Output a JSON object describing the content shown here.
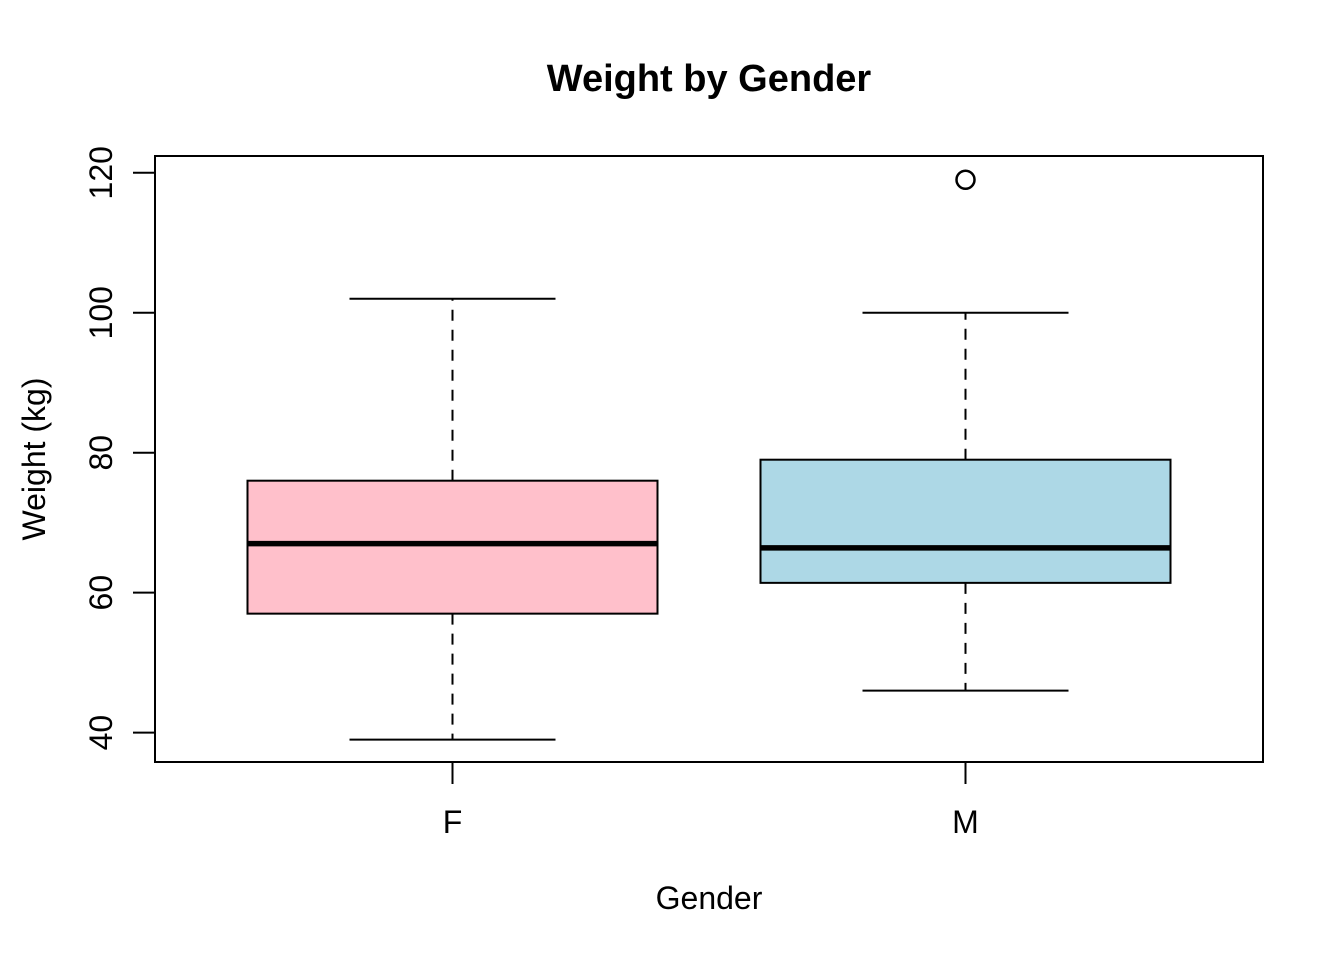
{
  "chart_data": {
    "type": "boxplot",
    "title": "Weight by Gender",
    "xlabel": "Gender",
    "ylabel": "Weight (kg)",
    "categories": [
      "F",
      "M"
    ],
    "y_ticks": [
      40,
      60,
      80,
      100,
      120
    ],
    "ylim": [
      35.8,
      122.4
    ],
    "grid": false,
    "legend": "none",
    "series": [
      {
        "name": "F",
        "fill": "#FFC0CB",
        "whisker_low": 39,
        "q1": 57,
        "median": 67,
        "q3": 76,
        "whisker_high": 102,
        "outliers": []
      },
      {
        "name": "M",
        "fill": "#ADD8E6",
        "whisker_low": 46,
        "q1": 61.4,
        "median": 66.4,
        "q3": 79,
        "whisker_high": 100,
        "outliers": [
          119
        ]
      }
    ],
    "colors": {
      "box_border": "#000000",
      "median_line": "#000000",
      "whisker": "#000000",
      "outlier_stroke": "#000000",
      "background": "#ffffff"
    }
  }
}
